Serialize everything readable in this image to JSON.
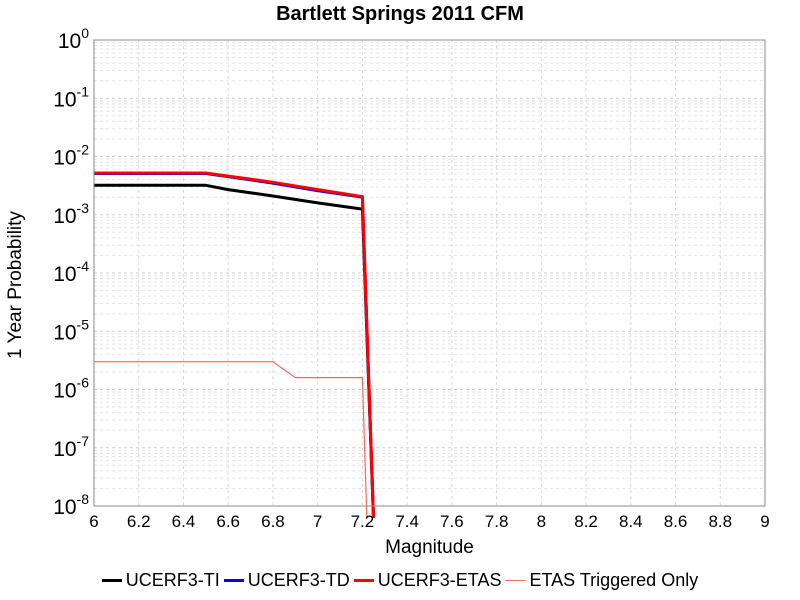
{
  "chart_data": {
    "type": "line",
    "title": "Bartlett Springs 2011 CFM",
    "xlabel": "Magnitude",
    "ylabel": "1 Year Probability",
    "xlim": [
      6,
      9
    ],
    "ylim": [
      1e-08,
      1
    ],
    "yscale": "log",
    "grid": true,
    "legend_position": "bottom",
    "x_ticks": [
      "6",
      "6.2",
      "6.4",
      "6.6",
      "6.8",
      "7",
      "7.2",
      "7.4",
      "7.6",
      "7.8",
      "8",
      "8.2",
      "8.4",
      "8.6",
      "8.8",
      "9"
    ],
    "y_ticks": [
      {
        "base": "10",
        "exp": "0",
        "value": 1
      },
      {
        "base": "10",
        "exp": "-1",
        "value": 0.1
      },
      {
        "base": "10",
        "exp": "-2",
        "value": 0.01
      },
      {
        "base": "10",
        "exp": "-3",
        "value": 0.001
      },
      {
        "base": "10",
        "exp": "-4",
        "value": 0.0001
      },
      {
        "base": "10",
        "exp": "-5",
        "value": 1e-05
      },
      {
        "base": "10",
        "exp": "-6",
        "value": 1e-06
      },
      {
        "base": "10",
        "exp": "-7",
        "value": 1e-07
      },
      {
        "base": "10",
        "exp": "-8",
        "value": 1e-08
      }
    ],
    "series": [
      {
        "name": "UCERF3-TI",
        "color": "#000000",
        "points": [
          [
            6.0,
            0.0032
          ],
          [
            6.5,
            0.0032
          ],
          [
            6.6,
            0.0027
          ],
          [
            6.8,
            0.0021
          ],
          [
            7.0,
            0.0016
          ],
          [
            7.2,
            0.00125
          ],
          [
            7.25,
            1e-09
          ]
        ]
      },
      {
        "name": "UCERF3-TD",
        "color": "#0000ff",
        "points": [
          [
            6.0,
            0.0051
          ],
          [
            6.5,
            0.0051
          ],
          [
            6.6,
            0.0045
          ],
          [
            6.8,
            0.0035
          ],
          [
            7.0,
            0.0026
          ],
          [
            7.2,
            0.002
          ],
          [
            7.25,
            1e-09
          ]
        ]
      },
      {
        "name": "UCERF3-ETAS",
        "color": "#ff0000",
        "points": [
          [
            6.0,
            0.0052
          ],
          [
            6.5,
            0.0052
          ],
          [
            6.6,
            0.0046
          ],
          [
            6.8,
            0.0036
          ],
          [
            7.0,
            0.0027
          ],
          [
            7.2,
            0.00205
          ],
          [
            7.25,
            1e-09
          ]
        ]
      },
      {
        "name": "ETAS Triggered Only",
        "color": "#ff6666",
        "points": [
          [
            6.0,
            3e-06
          ],
          [
            6.8,
            3e-06
          ],
          [
            6.9,
            1.6e-06
          ],
          [
            7.2,
            1.6e-06
          ],
          [
            7.22,
            1e-09
          ]
        ]
      }
    ]
  }
}
